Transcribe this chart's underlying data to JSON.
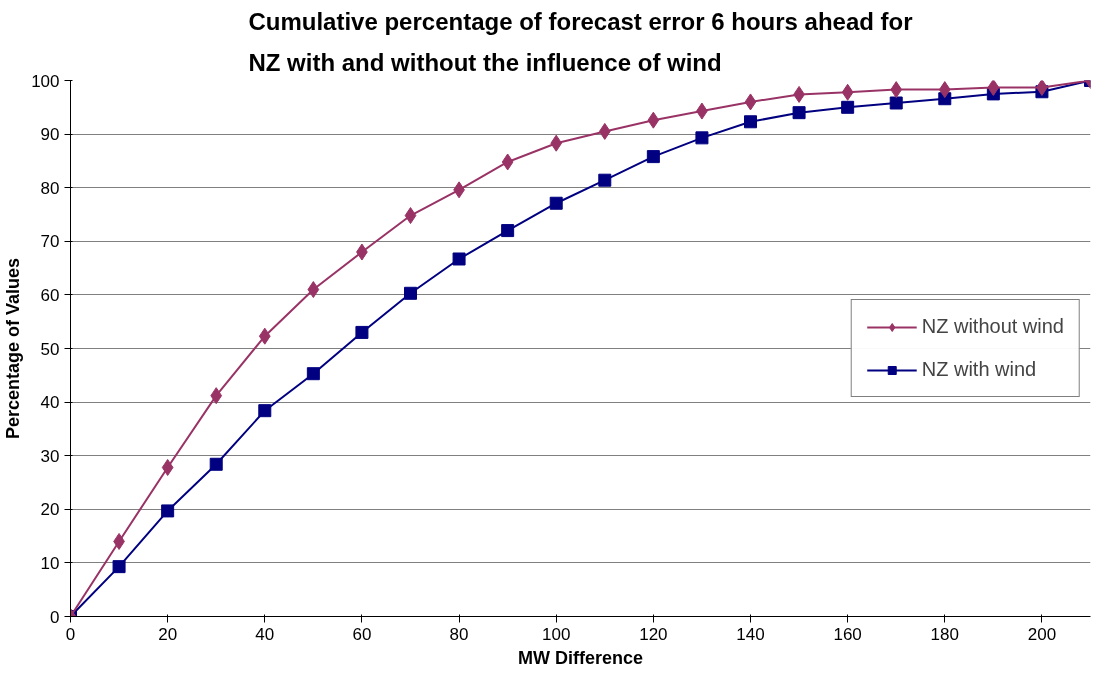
{
  "chart_data": {
    "type": "line",
    "title": "Cumulative percentage of forecast error 6 hours ahead for\nNZ with and without the influence of wind",
    "xlabel": "MW Difference",
    "ylabel": "Percentage of Values",
    "x": [
      0,
      10,
      20,
      30,
      40,
      50,
      60,
      70,
      80,
      90,
      100,
      110,
      120,
      130,
      140,
      150,
      160,
      170,
      180,
      190,
      200,
      210
    ],
    "series": [
      {
        "name": "NZ without wind",
        "color": "#993366",
        "marker": "diamond",
        "values": [
          0,
          14,
          27.8,
          41.2,
          52.3,
          61,
          68,
          74.8,
          79.6,
          84.8,
          88.3,
          90.5,
          92.6,
          94.3,
          96,
          97.4,
          97.8,
          98.3,
          98.3,
          98.7,
          98.7,
          100
        ]
      },
      {
        "name": "NZ with wind",
        "color": "#000080",
        "marker": "square",
        "values": [
          0,
          9.3,
          19.7,
          28.4,
          38.4,
          45.3,
          53,
          60.3,
          66.7,
          72,
          77.1,
          81.4,
          85.8,
          89.3,
          92.3,
          94,
          95,
          95.8,
          96.6,
          97.5,
          97.9,
          100
        ]
      }
    ],
    "xlim": [
      0,
      210
    ],
    "xticks": [
      0,
      20,
      40,
      60,
      80,
      100,
      120,
      140,
      160,
      180,
      200
    ],
    "ylim": [
      0,
      100
    ],
    "yticks": [
      0,
      10,
      20,
      30,
      40,
      50,
      60,
      70,
      80,
      90,
      100
    ],
    "grid": "y",
    "legend": "right",
    "line_style": "solid"
  }
}
